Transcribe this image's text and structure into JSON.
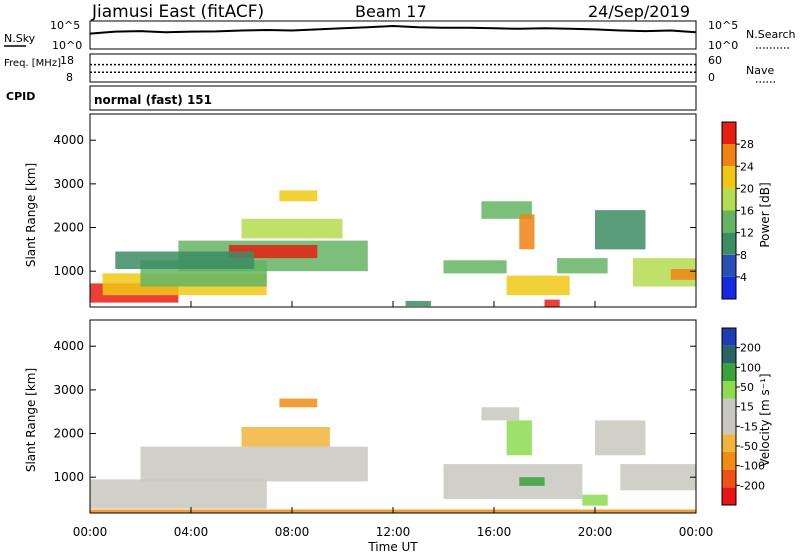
{
  "header": {
    "station": "Jiamusi East (fitACF)",
    "beam": "Beam 17",
    "date": "24/Sep/2019"
  },
  "colors": {
    "power": [
      "#1428e6",
      "#2850b4",
      "#3c8c64",
      "#64b464",
      "#b4dc50",
      "#f0c814",
      "#f08214",
      "#e61e14"
    ],
    "velocity": [
      "#e61414",
      "#f05014",
      "#f08c14",
      "#f0b43c",
      "#c8c8c0",
      "#c8c8c0",
      "#8cdc50",
      "#3ca03c",
      "#286464",
      "#1e3cb4"
    ]
  },
  "chart_data": [
    {
      "type": "line",
      "panel": "noise",
      "left_label": "N.Sky",
      "right_label": "N.Search",
      "left_ticks": [
        "10^5",
        "10^0"
      ],
      "right_ticks": [
        "10^5",
        "10^0"
      ],
      "x": [
        0,
        1,
        2,
        3,
        4,
        5,
        6,
        7,
        8,
        9,
        10,
        11,
        12,
        13,
        14,
        15,
        16,
        17,
        18,
        19,
        20,
        21,
        22,
        23,
        24
      ],
      "series": [
        {
          "values": [
            0.55,
            0.62,
            0.64,
            0.6,
            0.62,
            0.63,
            0.66,
            0.68,
            0.66,
            0.7,
            0.74,
            0.78,
            0.82,
            0.78,
            0.76,
            0.76,
            0.74,
            0.72,
            0.74,
            0.72,
            0.7,
            0.66,
            0.64,
            0.66,
            0.6
          ]
        }
      ]
    },
    {
      "type": "line",
      "panel": "frequency",
      "left_label": "Freq. [MHz]",
      "left_ticks": [
        "18",
        "8"
      ],
      "right_label": "Nave",
      "right_ticks": [
        "60",
        "0"
      ],
      "xlim": [
        0,
        24
      ],
      "series": [
        {
          "values": [
            0.35
          ]
        },
        {
          "values": [
            0.62
          ]
        }
      ]
    },
    {
      "type": "table",
      "panel": "cpid",
      "label": "CPID",
      "text": "normal (fast) 151"
    },
    {
      "type": "heatmap",
      "panel": "power",
      "ylabel": "Slant Range [km]",
      "yticks": [
        "1000",
        "2000",
        "3000",
        "4000"
      ],
      "ylim": [
        180,
        4600
      ],
      "xlim": [
        0,
        24
      ],
      "colorbar_label": "Power [dB]",
      "colorbar_ticks": [
        "4",
        "8",
        "12",
        "16",
        "20",
        "24",
        "28"
      ],
      "regions": [
        {
          "t0": 0.0,
          "t1": 3.5,
          "r0": 280,
          "r1": 720,
          "level": 7
        },
        {
          "t0": 0.5,
          "t1": 7.0,
          "r0": 450,
          "r1": 950,
          "level": 5
        },
        {
          "t0": 2.0,
          "t1": 7.0,
          "r0": 650,
          "r1": 1250,
          "level": 3
        },
        {
          "t0": 3.5,
          "t1": 11.0,
          "r0": 1000,
          "r1": 1700,
          "level": 3
        },
        {
          "t0": 5.5,
          "t1": 9.0,
          "r0": 1300,
          "r1": 1600,
          "level": 7
        },
        {
          "t0": 6.0,
          "t1": 10.0,
          "r0": 1750,
          "r1": 2200,
          "level": 4
        },
        {
          "t0": 7.5,
          "t1": 9.0,
          "r0": 2600,
          "r1": 2850,
          "level": 5
        },
        {
          "t0": 1.0,
          "t1": 6.5,
          "r0": 1050,
          "r1": 1450,
          "level": 2
        },
        {
          "t0": 14.0,
          "t1": 16.5,
          "r0": 950,
          "r1": 1250,
          "level": 3
        },
        {
          "t0": 15.5,
          "t1": 17.5,
          "r0": 2200,
          "r1": 2600,
          "level": 3
        },
        {
          "t0": 17.0,
          "t1": 17.6,
          "r0": 1500,
          "r1": 2300,
          "level": 6
        },
        {
          "t0": 16.5,
          "t1": 19.0,
          "r0": 450,
          "r1": 900,
          "level": 5
        },
        {
          "t0": 18.0,
          "t1": 18.6,
          "r0": 180,
          "r1": 350,
          "level": 7
        },
        {
          "t0": 21.5,
          "t1": 24.0,
          "r0": 650,
          "r1": 1300,
          "level": 4
        },
        {
          "t0": 20.0,
          "t1": 22.0,
          "r0": 1500,
          "r1": 2400,
          "level": 2
        },
        {
          "t0": 18.5,
          "t1": 20.5,
          "r0": 950,
          "r1": 1300,
          "level": 3
        },
        {
          "t0": 23.0,
          "t1": 24.0,
          "r0": 800,
          "r1": 1050,
          "level": 6
        },
        {
          "t0": 12.5,
          "t1": 13.5,
          "r0": 200,
          "r1": 320,
          "level": 2
        }
      ]
    },
    {
      "type": "heatmap",
      "panel": "velocity",
      "xlabel": "Time UT",
      "ylabel": "Slant Range [km]",
      "yticks": [
        "1000",
        "2000",
        "3000",
        "4000"
      ],
      "xticks": [
        "00:00",
        "04:00",
        "08:00",
        "12:00",
        "16:00",
        "20:00",
        "00:00"
      ],
      "ylim": [
        180,
        4600
      ],
      "xlim": [
        0,
        24
      ],
      "colorbar_label": "Velocity [m s⁻¹]",
      "colorbar_ticks": [
        "-200",
        "-100",
        "-50",
        "-15",
        "15",
        "50",
        "100",
        "200"
      ],
      "regions": [
        {
          "t0": 0.0,
          "t1": 7.0,
          "r0": 280,
          "r1": 950,
          "level": 4
        },
        {
          "t0": 2.0,
          "t1": 11.0,
          "r0": 900,
          "r1": 1700,
          "level": 5
        },
        {
          "t0": 6.0,
          "t1": 9.5,
          "r0": 1700,
          "r1": 2150,
          "level": 3
        },
        {
          "t0": 7.5,
          "t1": 9.0,
          "r0": 2600,
          "r1": 2800,
          "level": 2
        },
        {
          "t0": 14.0,
          "t1": 19.5,
          "r0": 500,
          "r1": 1300,
          "level": 4
        },
        {
          "t0": 16.5,
          "t1": 17.5,
          "r0": 1500,
          "r1": 2300,
          "level": 6
        },
        {
          "t0": 17.0,
          "t1": 18.0,
          "r0": 800,
          "r1": 1000,
          "level": 7
        },
        {
          "t0": 19.5,
          "t1": 20.5,
          "r0": 350,
          "r1": 600,
          "level": 6
        },
        {
          "t0": 21.0,
          "t1": 24.0,
          "r0": 700,
          "r1": 1300,
          "level": 5
        },
        {
          "t0": 20.0,
          "t1": 22.0,
          "r0": 1500,
          "r1": 2300,
          "level": 4
        },
        {
          "t0": 15.5,
          "t1": 17.0,
          "r0": 2300,
          "r1": 2600,
          "level": 4
        },
        {
          "t0": 0.0,
          "t1": 24.0,
          "r0": 190,
          "r1": 260,
          "level": 2
        }
      ]
    }
  ]
}
